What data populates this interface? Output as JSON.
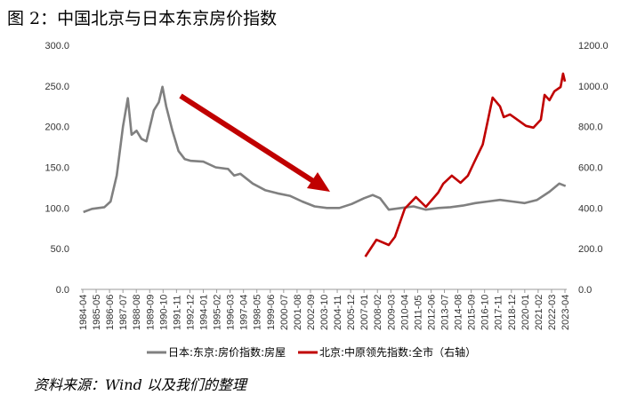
{
  "title": "图 2：中国北京与日本东京房价指数",
  "source": "资料来源：Wind 以及我们的整理",
  "chart_data": {
    "type": "line",
    "title": "图 2：中国北京与日本东京房价指数",
    "x_ticks": [
      "1984-04",
      "1985-05",
      "1986-06",
      "1987-07",
      "1988-08",
      "1989-09",
      "1990-10",
      "1991-11",
      "1992-12",
      "1994-01",
      "1995-02",
      "1996-03",
      "1997-04",
      "1998-05",
      "1999-06",
      "2000-07",
      "2001-08",
      "2002-09",
      "2003-10",
      "2004-11",
      "2005-12",
      "2007-01",
      "2008-02",
      "2009-03",
      "2010-04",
      "2011-05",
      "2012-06",
      "2013-07",
      "2014-08",
      "2015-09",
      "2016-10",
      "2017-11",
      "2018-12",
      "2020-01",
      "2021-02",
      "2022-03",
      "2023-04"
    ],
    "xlim": [
      1984.25,
      2023.25
    ],
    "y_left": {
      "ylim": [
        0,
        300
      ],
      "ticks": [
        "0.0",
        "50.0",
        "100.0",
        "150.0",
        "200.0",
        "250.0",
        "300.0"
      ]
    },
    "y_right": {
      "ylim": [
        0,
        1200
      ],
      "ticks": [
        "0.0",
        "200.0",
        "400.0",
        "600.0",
        "800.0",
        "1000.0",
        "1200.0"
      ]
    },
    "legend_position": "bottom",
    "series": [
      {
        "name": "日本:东京:房价指数:房屋",
        "axis": "left",
        "color": "#808080",
        "x": [
          1984.3,
          1985,
          1986,
          1986.5,
          1987,
          1987.5,
          1987.9,
          1988.2,
          1988.6,
          1989,
          1989.4,
          1990,
          1990.4,
          1990.7,
          1991,
          1991.5,
          1992,
          1992.5,
          1993,
          1994,
          1995,
          1996,
          1996.5,
          1997,
          1998,
          1999,
          2000,
          2001,
          2002,
          2003,
          2004,
          2005,
          2006,
          2007,
          2007.7,
          2008.3,
          2009,
          2010,
          2011,
          2012,
          2013,
          2014,
          2015,
          2016,
          2017,
          2018,
          2019,
          2020,
          2021,
          2022,
          2022.8,
          2023.3
        ],
        "y": [
          95,
          99,
          101,
          108,
          140,
          200,
          235,
          190,
          195,
          185,
          182,
          220,
          230,
          249,
          225,
          195,
          170,
          160,
          158,
          157,
          150,
          148,
          140,
          142,
          130,
          122,
          118,
          115,
          108,
          102,
          100,
          100,
          105,
          112,
          116,
          112,
          98,
          100,
          102,
          98,
          100,
          101,
          103,
          106,
          108,
          110,
          108,
          106,
          110,
          120,
          130,
          127
        ]
      },
      {
        "name": "北京:中原领先指数:全市（右轴）",
        "axis": "right",
        "color": "#c00000",
        "x": [
          2007.1,
          2008.0,
          2009.0,
          2009.5,
          2010.3,
          2011.2,
          2012.0,
          2013.0,
          2013.4,
          2014.1,
          2014.8,
          2015.4,
          2015.9,
          2016.6,
          2017.0,
          2017.4,
          2018.0,
          2018.3,
          2018.8,
          2019.2,
          2020.1,
          2020.7,
          2021.3,
          2021.6,
          2022.0,
          2022.4,
          2022.9,
          2023.1,
          2023.25
        ],
        "y": [
          161,
          244,
          218,
          258,
          397,
          454,
          406,
          476,
          519,
          559,
          524,
          559,
          624,
          712,
          825,
          943,
          900,
          847,
          860,
          843,
          804,
          795,
          834,
          956,
          930,
          974,
          995,
          1061,
          1022
        ]
      }
    ]
  }
}
